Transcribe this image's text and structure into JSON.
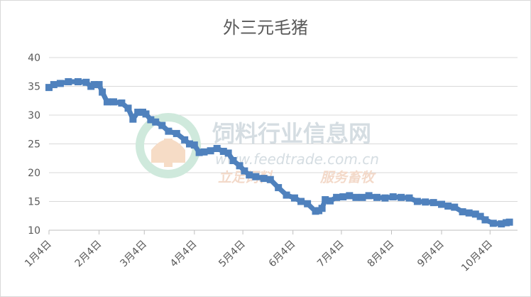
{
  "chart_data": {
    "type": "line",
    "title": "外三元毛猪",
    "xlabel": "",
    "ylabel": "",
    "ylim": [
      10,
      40
    ],
    "yticks": [
      10,
      15,
      20,
      25,
      30,
      35,
      40
    ],
    "xlim": [
      0,
      290
    ],
    "grid": "horizontal",
    "legend": "none",
    "colors": {
      "series": "#4f81bd",
      "grid": "#d9d9d9",
      "axis": "#bfbfbf",
      "text": "#595959"
    },
    "x_ticks": [
      {
        "day": 0,
        "label": "1月4日"
      },
      {
        "day": 31,
        "label": "2月4日"
      },
      {
        "day": 59,
        "label": "3月4日"
      },
      {
        "day": 90,
        "label": "4月4日"
      },
      {
        "day": 120,
        "label": "5月4日"
      },
      {
        "day": 151,
        "label": "6月4日"
      },
      {
        "day": 181,
        "label": "7月4日"
      },
      {
        "day": 212,
        "label": "8月4日"
      },
      {
        "day": 243,
        "label": "9月4日"
      },
      {
        "day": 273,
        "label": "10月4日"
      }
    ],
    "series": [
      {
        "name": "",
        "x": [
          0,
          3,
          7,
          12,
          18,
          23,
          26,
          28,
          31,
          33,
          36,
          40,
          45,
          49,
          52,
          55,
          58,
          60,
          63,
          66,
          70,
          74,
          79,
          84,
          87,
          90,
          93,
          96,
          100,
          104,
          108,
          111,
          114,
          118,
          121,
          124,
          128,
          133,
          137,
          142,
          147,
          152,
          156,
          160,
          165,
          167,
          169,
          171,
          174,
          178,
          182,
          186,
          190,
          194,
          198,
          203,
          208,
          213,
          218,
          223,
          228,
          233,
          238,
          243,
          247,
          251,
          256,
          260,
          264,
          267,
          270,
          275,
          280,
          283,
          285
        ],
        "y": [
          34.8,
          35.3,
          35.5,
          35.8,
          35.8,
          35.7,
          35.0,
          35.3,
          35.3,
          34.0,
          32.3,
          32.3,
          32.1,
          31.2,
          29.3,
          30.5,
          30.5,
          30.2,
          29.2,
          28.8,
          28.2,
          27.2,
          26.8,
          25.7,
          25.0,
          24.8,
          23.5,
          23.6,
          23.8,
          24.2,
          23.7,
          23.4,
          22.1,
          21.2,
          20.3,
          19.6,
          19.3,
          19.0,
          18.8,
          17.4,
          16.1,
          15.6,
          15.0,
          14.6,
          13.3,
          13.4,
          13.8,
          15.3,
          15.1,
          15.7,
          15.8,
          16.0,
          15.7,
          15.7,
          16.0,
          15.7,
          15.6,
          15.8,
          15.7,
          15.6,
          15.0,
          14.9,
          14.8,
          14.5,
          14.2,
          14.0,
          13.2,
          13.0,
          12.8,
          12.4,
          11.8,
          11.2,
          11.1,
          11.3,
          11.4
        ]
      }
    ],
    "watermark": {
      "name": "饲料行业信息网",
      "url": "www.feedtrade.com.cn",
      "slogan_left": "立足饲料",
      "slogan_right": "服务畜牧"
    }
  }
}
